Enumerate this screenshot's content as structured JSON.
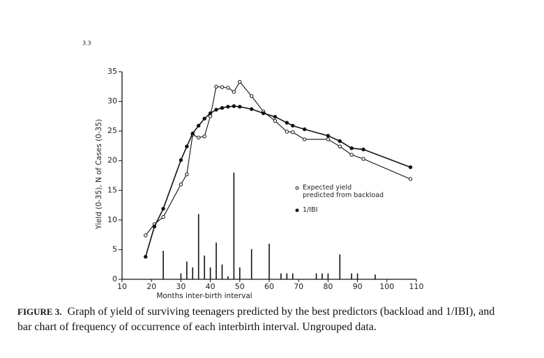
{
  "page_mark": "3.3",
  "chart_data": {
    "type": "line",
    "xlabel": "Months inter-birth interval",
    "ylabel": "Yield (0-35),   N of Cases (0-35)",
    "xlim": [
      10,
      110
    ],
    "xticks": [
      10,
      20,
      30,
      40,
      50,
      60,
      70,
      80,
      90,
      100,
      110
    ],
    "ylim": [
      0,
      35
    ],
    "yticks": [
      0,
      5,
      10,
      15,
      20,
      25,
      30,
      35
    ],
    "legend": "right",
    "x": [
      18,
      21,
      24,
      30,
      32,
      34,
      36,
      38,
      40,
      42,
      44,
      46,
      48,
      50,
      54,
      58,
      62,
      66,
      68,
      72,
      80,
      84,
      88,
      92,
      108
    ],
    "series": [
      {
        "name": "Expected yield predicted from backload",
        "color": "#111",
        "marker": "open",
        "values": [
          7.4,
          9.3,
          10.5,
          16,
          17.7,
          24.4,
          23.9,
          24.1,
          27.5,
          32.5,
          32.4,
          32.3,
          31.6,
          33.3,
          30.9,
          28.3,
          26.7,
          24.9,
          24.8,
          23.6,
          23.6,
          22.4,
          21,
          20.3,
          16.9
        ]
      },
      {
        "name": "1/IBI",
        "color": "#111",
        "marker": "filled",
        "values": [
          3.8,
          8.9,
          11.9,
          20.1,
          22.4,
          24.6,
          25.9,
          27.1,
          28,
          28.6,
          28.9,
          29.1,
          29.2,
          29.1,
          28.7,
          28,
          27.4,
          26.4,
          25.9,
          25.3,
          24.2,
          23.3,
          22.1,
          21.9,
          18.9
        ]
      }
    ],
    "bars": {
      "color": "#111",
      "x": [
        24,
        30,
        32,
        34,
        36,
        38,
        40,
        42,
        44,
        46,
        48,
        50,
        54,
        60,
        64,
        66,
        68,
        76,
        78,
        80,
        84,
        88,
        90,
        96
      ],
      "values": [
        4.8,
        1,
        3,
        2,
        11,
        4,
        2,
        6.2,
        2.5,
        0.5,
        18,
        2,
        5.1,
        6,
        1,
        1,
        1,
        1,
        1,
        1,
        4.2,
        1,
        1,
        0.8
      ]
    }
  },
  "figure": {
    "label": "FIGURE 3.",
    "caption": "Graph of yield of surviving teenagers predicted by the best predictors (backload and 1/IBI), and bar chart of frequency of occurrence of each interbirth interval. Ungrouped data."
  }
}
